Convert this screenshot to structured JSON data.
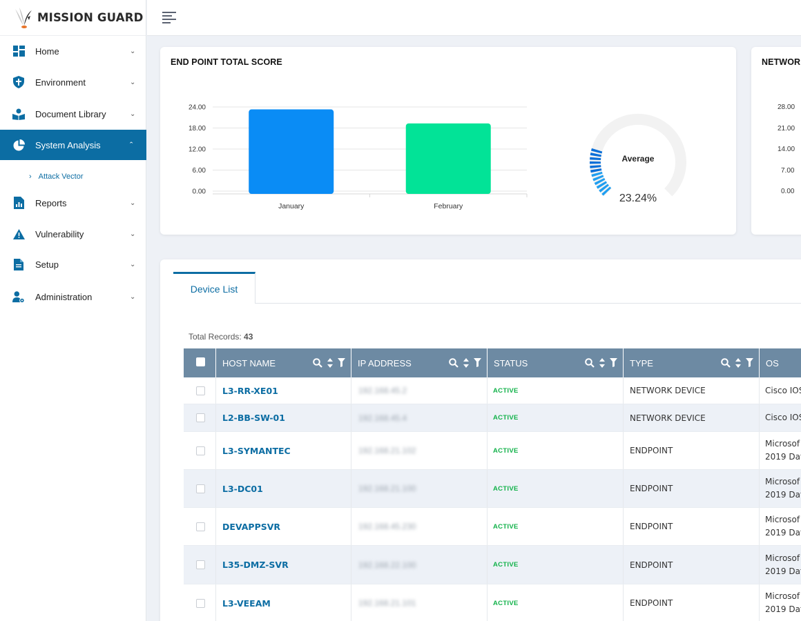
{
  "app": {
    "brand_name": "MISSION GUARD"
  },
  "sidebar": {
    "items": [
      {
        "label": "Home",
        "icon": "dashboard-icon"
      },
      {
        "label": "Environment",
        "icon": "shield-icon"
      },
      {
        "label": "Document Library",
        "icon": "book-reader-icon"
      },
      {
        "label": "System Analysis",
        "icon": "pie-chart-icon",
        "active": true
      },
      {
        "label": "Reports",
        "icon": "report-chart-icon"
      },
      {
        "label": "Vulnerability",
        "icon": "warning-icon"
      },
      {
        "label": "Setup",
        "icon": "document-icon"
      },
      {
        "label": "Administration",
        "icon": "user-settings-icon"
      }
    ],
    "sub_items": [
      {
        "label": "Attack Vector"
      }
    ]
  },
  "topbar": {
    "menu_icon": "hamburger-icon"
  },
  "endpoint_card": {
    "title": "END POINT TOTAL SCORE",
    "gauge": {
      "label": "Average",
      "value_text": "23.24%",
      "value": 23.24
    }
  },
  "network_card": {
    "title": "NETWOR",
    "y_ticks": [
      "28.00",
      "21.00",
      "14.00",
      "7.00",
      "0.00"
    ]
  },
  "chart_data": {
    "type": "bar",
    "title": "END POINT TOTAL SCORE",
    "categories": [
      "January",
      "February"
    ],
    "values": [
      23.3,
      19.3
    ],
    "y_ticks": [
      "24.00",
      "18.00",
      "12.00",
      "6.00",
      "0.00"
    ],
    "ylim": [
      0,
      24
    ],
    "grid": true,
    "colors": [
      "#0a8cf5",
      "#02e397"
    ]
  },
  "device_list": {
    "tab_label": "Device List",
    "total_records_label": "Total Records:",
    "total_records": "43",
    "columns": [
      "HOST NAME",
      "IP ADDRESS",
      "STATUS",
      "TYPE",
      "OS"
    ],
    "rows": [
      {
        "host": "L3-RR-XE01",
        "ip": "192.168.45.2",
        "status": "ACTIVE",
        "type": "NETWORK DEVICE",
        "os": [
          "Cisco IOS"
        ]
      },
      {
        "host": "L2-BB-SW-01",
        "ip": "192.168.45.4",
        "status": "ACTIVE",
        "type": "NETWORK DEVICE",
        "os": [
          "Cisco IOS"
        ]
      },
      {
        "host": "L3-SYMANTEC",
        "ip": "192.168.21.102",
        "status": "ACTIVE",
        "type": "ENDPOINT",
        "os": [
          "Microsof",
          "2019 Dat"
        ]
      },
      {
        "host": "L3-DC01",
        "ip": "192.168.21.100",
        "status": "ACTIVE",
        "type": "ENDPOINT",
        "os": [
          "Microsof",
          "2019 Dat"
        ]
      },
      {
        "host": "DEVAPPSVR",
        "ip": "192.168.45.230",
        "status": "ACTIVE",
        "type": "ENDPOINT",
        "os": [
          "Microsof",
          "2019 Dat"
        ]
      },
      {
        "host": "L35-DMZ-SVR",
        "ip": "192.168.22.100",
        "status": "ACTIVE",
        "type": "ENDPOINT",
        "os": [
          "Microsof",
          "2019 Dat"
        ]
      },
      {
        "host": "L3-VEEAM",
        "ip": "192.168.21.101",
        "status": "ACTIVE",
        "type": "ENDPOINT",
        "os": [
          "Microsof",
          "2019 Dat"
        ]
      }
    ]
  }
}
